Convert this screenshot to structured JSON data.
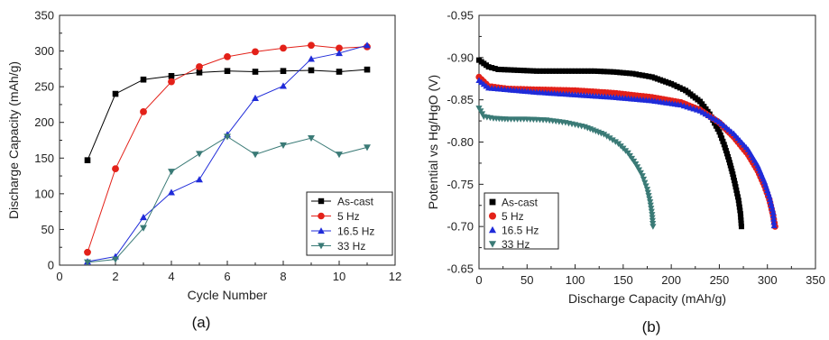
{
  "chart_data": [
    {
      "type": "line",
      "panel_label": "(a)",
      "xlabel": "Cycle Number",
      "ylabel": "Discharge Capacity (mAh/g)",
      "xlim": [
        0,
        12
      ],
      "ylim": [
        0,
        350
      ],
      "xticks": [
        0,
        2,
        4,
        6,
        8,
        10,
        12
      ],
      "yticks": [
        0,
        50,
        100,
        150,
        200,
        250,
        300,
        350
      ],
      "grid": false,
      "legend_position": "bottom-right",
      "x": [
        1,
        2,
        3,
        4,
        5,
        6,
        7,
        8,
        9,
        10,
        11
      ],
      "series": [
        {
          "name": "As-cast",
          "color": "#000000",
          "marker": "square",
          "values": [
            147,
            240,
            260,
            265,
            270,
            272,
            271,
            272,
            273,
            271,
            274
          ]
        },
        {
          "name": "5 Hz",
          "color": "#e32119",
          "marker": "circle",
          "values": [
            18,
            135,
            215,
            257,
            278,
            292,
            299,
            304,
            308,
            304,
            306
          ]
        },
        {
          "name": "16.5 Hz",
          "color": "#1f2bd9",
          "marker": "triangle-up",
          "values": [
            5,
            12,
            67,
            102,
            120,
            183,
            234,
            251,
            289,
            297,
            308
          ]
        },
        {
          "name": "33 Hz",
          "color": "#3a7a76",
          "marker": "triangle-down",
          "values": [
            4,
            8,
            52,
            131,
            156,
            180,
            155,
            168,
            178,
            155,
            165
          ]
        }
      ]
    },
    {
      "type": "scatter",
      "panel_label": "(b)",
      "xlabel": "Discharge Capacity (mAh/g)",
      "ylabel": "Potential vs Hg/HgO (V)",
      "xlim": [
        0,
        350
      ],
      "ylim": [
        -0.65,
        -0.95
      ],
      "inverted_y": true,
      "xticks": [
        0,
        50,
        100,
        150,
        200,
        250,
        300,
        350
      ],
      "yticks": [
        -0.95,
        -0.9,
        -0.85,
        -0.8,
        -0.75,
        -0.7,
        -0.65
      ],
      "grid": false,
      "legend_position": "bottom-left",
      "series": [
        {
          "name": "As-cast",
          "color": "#000000",
          "marker": "square",
          "x": [
            0,
            5,
            10,
            20,
            40,
            60,
            80,
            100,
            120,
            140,
            160,
            180,
            200,
            215,
            230,
            240,
            250,
            255,
            260,
            264,
            267,
            270,
            272,
            273
          ],
          "y": [
            -0.897,
            -0.893,
            -0.889,
            -0.886,
            -0.885,
            -0.884,
            -0.884,
            -0.884,
            -0.884,
            -0.883,
            -0.881,
            -0.877,
            -0.869,
            -0.861,
            -0.848,
            -0.833,
            -0.812,
            -0.797,
            -0.779,
            -0.762,
            -0.747,
            -0.731,
            -0.715,
            -0.7
          ]
        },
        {
          "name": "5 Hz",
          "color": "#e32119",
          "marker": "circle",
          "x": [
            0,
            10,
            30,
            60,
            100,
            140,
            180,
            210,
            230,
            250,
            265,
            280,
            290,
            297,
            302,
            306,
            308
          ],
          "y": [
            -0.877,
            -0.866,
            -0.863,
            -0.862,
            -0.861,
            -0.858,
            -0.853,
            -0.847,
            -0.838,
            -0.823,
            -0.806,
            -0.785,
            -0.766,
            -0.748,
            -0.732,
            -0.713,
            -0.7
          ]
        },
        {
          "name": "16.5 Hz",
          "color": "#1f2bd9",
          "marker": "triangle-up",
          "x": [
            0,
            10,
            30,
            60,
            100,
            140,
            180,
            210,
            230,
            250,
            265,
            280,
            290,
            297,
            302,
            306,
            307
          ],
          "y": [
            -0.873,
            -0.864,
            -0.862,
            -0.859,
            -0.856,
            -0.853,
            -0.849,
            -0.844,
            -0.837,
            -0.824,
            -0.81,
            -0.791,
            -0.772,
            -0.753,
            -0.736,
            -0.717,
            -0.701
          ]
        },
        {
          "name": "33 Hz",
          "color": "#3a7a76",
          "marker": "triangle-down",
          "x": [
            0,
            5,
            15,
            30,
            50,
            70,
            90,
            110,
            130,
            145,
            155,
            163,
            170,
            175,
            178,
            180,
            181
          ],
          "y": [
            -0.84,
            -0.83,
            -0.828,
            -0.827,
            -0.827,
            -0.826,
            -0.823,
            -0.818,
            -0.809,
            -0.798,
            -0.787,
            -0.774,
            -0.76,
            -0.744,
            -0.729,
            -0.714,
            -0.7
          ]
        }
      ]
    }
  ]
}
